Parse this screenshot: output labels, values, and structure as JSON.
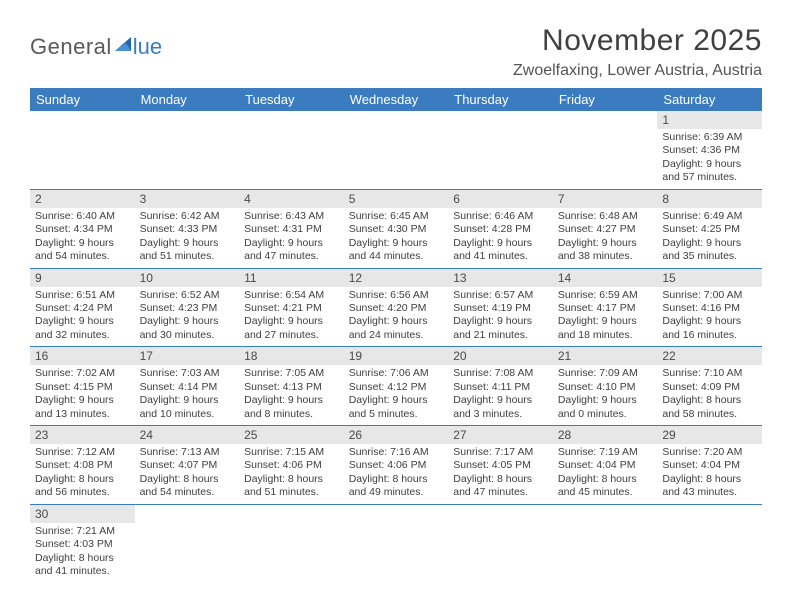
{
  "logo": {
    "general": "General",
    "blue": "lue"
  },
  "header": {
    "title": "November 2025",
    "location": "Zwoelfaxing, Lower Austria, Austria"
  },
  "colors": {
    "header_bg": "#3b7bbf",
    "header_text": "#ffffff",
    "daynum_bg": "#e7e7e7",
    "border": "#3b7bbf",
    "text": "#404040"
  },
  "weekdays": [
    "Sunday",
    "Monday",
    "Tuesday",
    "Wednesday",
    "Thursday",
    "Friday",
    "Saturday"
  ],
  "weeks": [
    [
      {
        "num": "",
        "sunrise": "",
        "sunset": "",
        "daylight": ""
      },
      {
        "num": "",
        "sunrise": "",
        "sunset": "",
        "daylight": ""
      },
      {
        "num": "",
        "sunrise": "",
        "sunset": "",
        "daylight": ""
      },
      {
        "num": "",
        "sunrise": "",
        "sunset": "",
        "daylight": ""
      },
      {
        "num": "",
        "sunrise": "",
        "sunset": "",
        "daylight": ""
      },
      {
        "num": "",
        "sunrise": "",
        "sunset": "",
        "daylight": ""
      },
      {
        "num": "1",
        "sunrise": "Sunrise: 6:39 AM",
        "sunset": "Sunset: 4:36 PM",
        "daylight": "Daylight: 9 hours and 57 minutes."
      }
    ],
    [
      {
        "num": "2",
        "sunrise": "Sunrise: 6:40 AM",
        "sunset": "Sunset: 4:34 PM",
        "daylight": "Daylight: 9 hours and 54 minutes."
      },
      {
        "num": "3",
        "sunrise": "Sunrise: 6:42 AM",
        "sunset": "Sunset: 4:33 PM",
        "daylight": "Daylight: 9 hours and 51 minutes."
      },
      {
        "num": "4",
        "sunrise": "Sunrise: 6:43 AM",
        "sunset": "Sunset: 4:31 PM",
        "daylight": "Daylight: 9 hours and 47 minutes."
      },
      {
        "num": "5",
        "sunrise": "Sunrise: 6:45 AM",
        "sunset": "Sunset: 4:30 PM",
        "daylight": "Daylight: 9 hours and 44 minutes."
      },
      {
        "num": "6",
        "sunrise": "Sunrise: 6:46 AM",
        "sunset": "Sunset: 4:28 PM",
        "daylight": "Daylight: 9 hours and 41 minutes."
      },
      {
        "num": "7",
        "sunrise": "Sunrise: 6:48 AM",
        "sunset": "Sunset: 4:27 PM",
        "daylight": "Daylight: 9 hours and 38 minutes."
      },
      {
        "num": "8",
        "sunrise": "Sunrise: 6:49 AM",
        "sunset": "Sunset: 4:25 PM",
        "daylight": "Daylight: 9 hours and 35 minutes."
      }
    ],
    [
      {
        "num": "9",
        "sunrise": "Sunrise: 6:51 AM",
        "sunset": "Sunset: 4:24 PM",
        "daylight": "Daylight: 9 hours and 32 minutes."
      },
      {
        "num": "10",
        "sunrise": "Sunrise: 6:52 AM",
        "sunset": "Sunset: 4:23 PM",
        "daylight": "Daylight: 9 hours and 30 minutes."
      },
      {
        "num": "11",
        "sunrise": "Sunrise: 6:54 AM",
        "sunset": "Sunset: 4:21 PM",
        "daylight": "Daylight: 9 hours and 27 minutes."
      },
      {
        "num": "12",
        "sunrise": "Sunrise: 6:56 AM",
        "sunset": "Sunset: 4:20 PM",
        "daylight": "Daylight: 9 hours and 24 minutes."
      },
      {
        "num": "13",
        "sunrise": "Sunrise: 6:57 AM",
        "sunset": "Sunset: 4:19 PM",
        "daylight": "Daylight: 9 hours and 21 minutes."
      },
      {
        "num": "14",
        "sunrise": "Sunrise: 6:59 AM",
        "sunset": "Sunset: 4:17 PM",
        "daylight": "Daylight: 9 hours and 18 minutes."
      },
      {
        "num": "15",
        "sunrise": "Sunrise: 7:00 AM",
        "sunset": "Sunset: 4:16 PM",
        "daylight": "Daylight: 9 hours and 16 minutes."
      }
    ],
    [
      {
        "num": "16",
        "sunrise": "Sunrise: 7:02 AM",
        "sunset": "Sunset: 4:15 PM",
        "daylight": "Daylight: 9 hours and 13 minutes."
      },
      {
        "num": "17",
        "sunrise": "Sunrise: 7:03 AM",
        "sunset": "Sunset: 4:14 PM",
        "daylight": "Daylight: 9 hours and 10 minutes."
      },
      {
        "num": "18",
        "sunrise": "Sunrise: 7:05 AM",
        "sunset": "Sunset: 4:13 PM",
        "daylight": "Daylight: 9 hours and 8 minutes."
      },
      {
        "num": "19",
        "sunrise": "Sunrise: 7:06 AM",
        "sunset": "Sunset: 4:12 PM",
        "daylight": "Daylight: 9 hours and 5 minutes."
      },
      {
        "num": "20",
        "sunrise": "Sunrise: 7:08 AM",
        "sunset": "Sunset: 4:11 PM",
        "daylight": "Daylight: 9 hours and 3 minutes."
      },
      {
        "num": "21",
        "sunrise": "Sunrise: 7:09 AM",
        "sunset": "Sunset: 4:10 PM",
        "daylight": "Daylight: 9 hours and 0 minutes."
      },
      {
        "num": "22",
        "sunrise": "Sunrise: 7:10 AM",
        "sunset": "Sunset: 4:09 PM",
        "daylight": "Daylight: 8 hours and 58 minutes."
      }
    ],
    [
      {
        "num": "23",
        "sunrise": "Sunrise: 7:12 AM",
        "sunset": "Sunset: 4:08 PM",
        "daylight": "Daylight: 8 hours and 56 minutes."
      },
      {
        "num": "24",
        "sunrise": "Sunrise: 7:13 AM",
        "sunset": "Sunset: 4:07 PM",
        "daylight": "Daylight: 8 hours and 54 minutes."
      },
      {
        "num": "25",
        "sunrise": "Sunrise: 7:15 AM",
        "sunset": "Sunset: 4:06 PM",
        "daylight": "Daylight: 8 hours and 51 minutes."
      },
      {
        "num": "26",
        "sunrise": "Sunrise: 7:16 AM",
        "sunset": "Sunset: 4:06 PM",
        "daylight": "Daylight: 8 hours and 49 minutes."
      },
      {
        "num": "27",
        "sunrise": "Sunrise: 7:17 AM",
        "sunset": "Sunset: 4:05 PM",
        "daylight": "Daylight: 8 hours and 47 minutes."
      },
      {
        "num": "28",
        "sunrise": "Sunrise: 7:19 AM",
        "sunset": "Sunset: 4:04 PM",
        "daylight": "Daylight: 8 hours and 45 minutes."
      },
      {
        "num": "29",
        "sunrise": "Sunrise: 7:20 AM",
        "sunset": "Sunset: 4:04 PM",
        "daylight": "Daylight: 8 hours and 43 minutes."
      }
    ],
    [
      {
        "num": "30",
        "sunrise": "Sunrise: 7:21 AM",
        "sunset": "Sunset: 4:03 PM",
        "daylight": "Daylight: 8 hours and 41 minutes."
      },
      {
        "num": "",
        "sunrise": "",
        "sunset": "",
        "daylight": ""
      },
      {
        "num": "",
        "sunrise": "",
        "sunset": "",
        "daylight": ""
      },
      {
        "num": "",
        "sunrise": "",
        "sunset": "",
        "daylight": ""
      },
      {
        "num": "",
        "sunrise": "",
        "sunset": "",
        "daylight": ""
      },
      {
        "num": "",
        "sunrise": "",
        "sunset": "",
        "daylight": ""
      },
      {
        "num": "",
        "sunrise": "",
        "sunset": "",
        "daylight": ""
      }
    ]
  ]
}
